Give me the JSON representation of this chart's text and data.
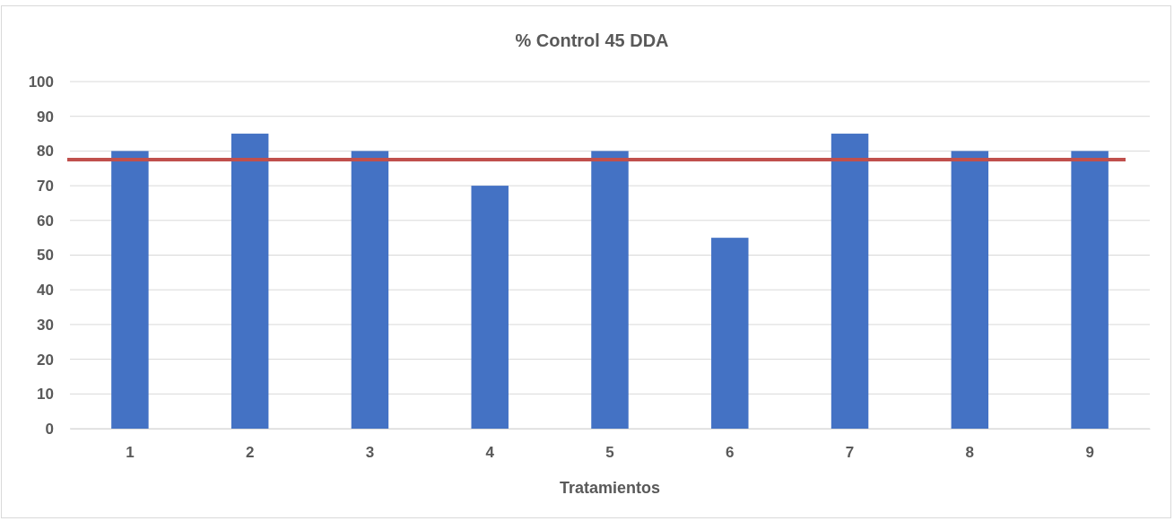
{
  "chart_data": {
    "type": "bar",
    "title": "%  Control 45 DDA",
    "xlabel": "Tratamientos",
    "categories": [
      "1",
      "2",
      "3",
      "4",
      "5",
      "6",
      "7",
      "8",
      "9"
    ],
    "values": [
      80,
      85,
      80,
      70,
      80,
      55,
      85,
      80,
      80
    ],
    "color": "#4472c4",
    "ylim": [
      0,
      100
    ],
    "yticks": [
      0,
      10,
      20,
      30,
      40,
      50,
      60,
      70,
      80,
      90,
      100
    ],
    "grid": "y",
    "ref_lines": [
      {
        "axis": "y",
        "value": 77.5,
        "color": "#c0504d"
      }
    ]
  }
}
